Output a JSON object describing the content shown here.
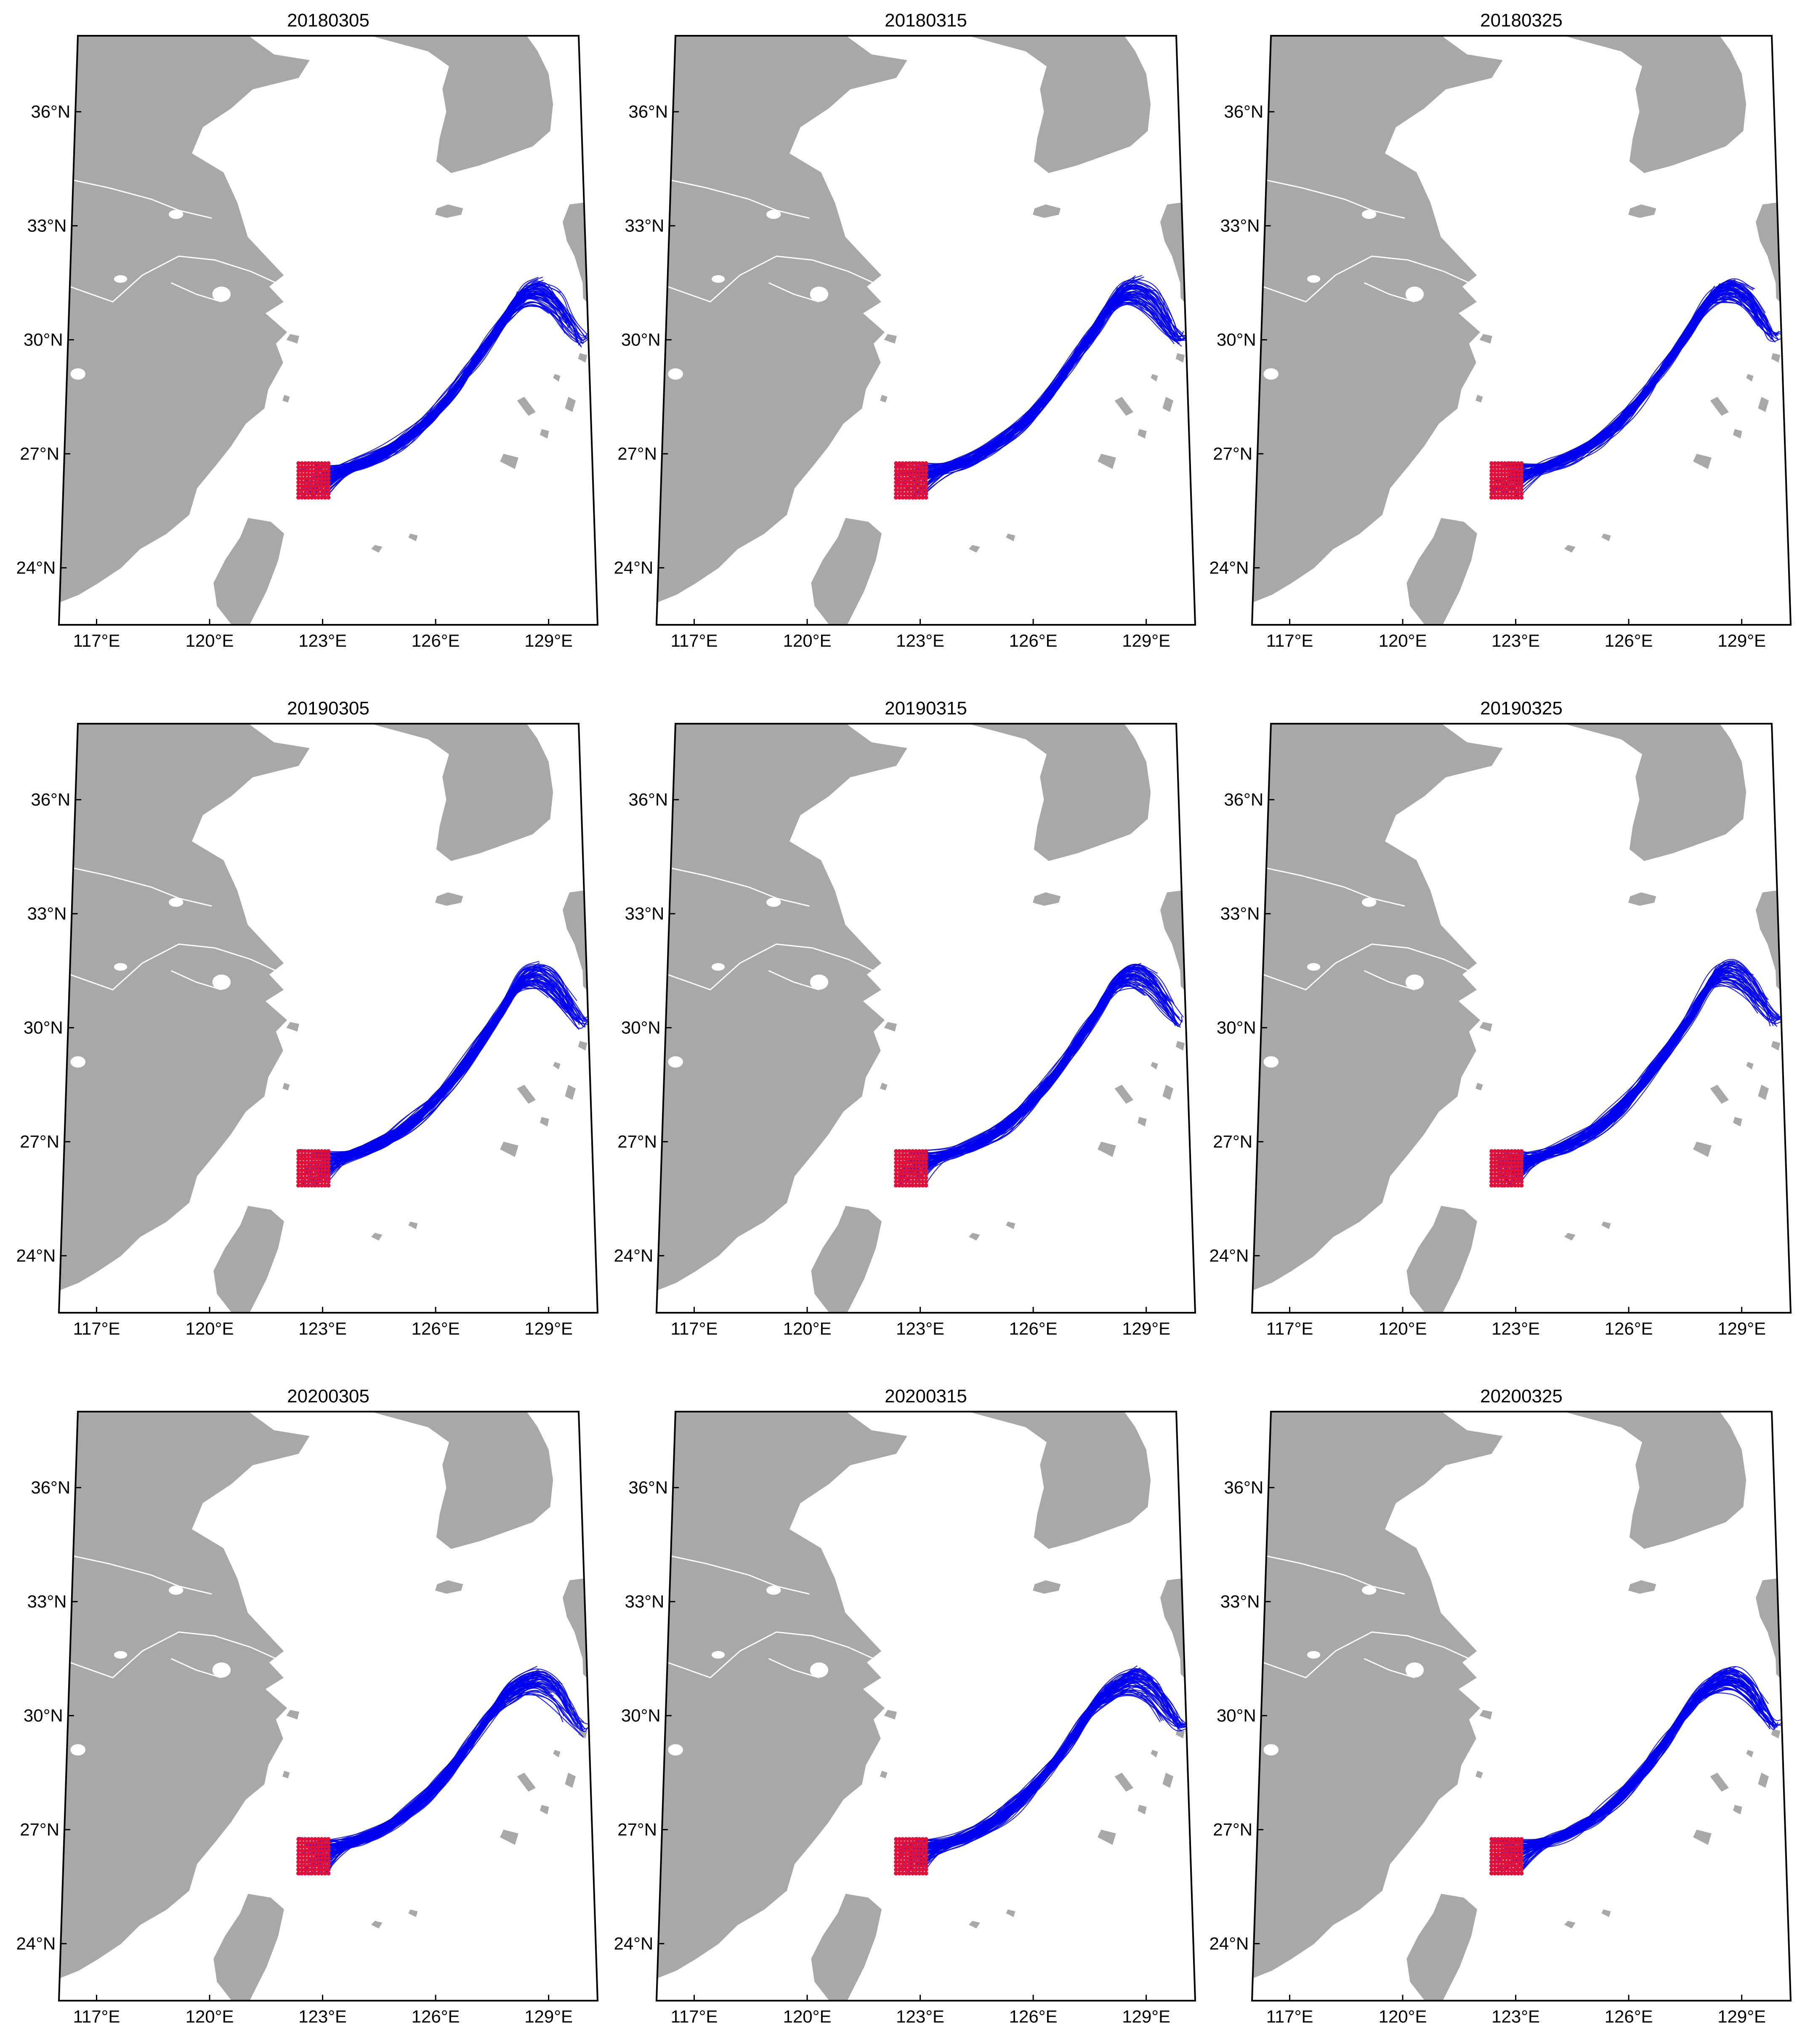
{
  "figure": {
    "panels": [
      {
        "title": "20180305",
        "variant": 0
      },
      {
        "title": "20180315",
        "variant": 1
      },
      {
        "title": "20180325",
        "variant": 2
      },
      {
        "title": "20190305",
        "variant": 3
      },
      {
        "title": "20190315",
        "variant": 4
      },
      {
        "title": "20190325",
        "variant": 5
      },
      {
        "title": "20200305",
        "variant": 6
      },
      {
        "title": "20200315",
        "variant": 7
      },
      {
        "title": "20200325",
        "variant": 8
      }
    ],
    "lon_ticks": [
      {
        "value": 117,
        "label": "117°E"
      },
      {
        "value": 120,
        "label": "120°E"
      },
      {
        "value": 123,
        "label": "123°E"
      },
      {
        "value": 126,
        "label": "126°E"
      },
      {
        "value": 129,
        "label": "129°E"
      }
    ],
    "lat_ticks": [
      {
        "value": 24,
        "label": "24°N"
      },
      {
        "value": 27,
        "label": "27°N"
      },
      {
        "value": 30,
        "label": "30°N"
      },
      {
        "value": 33,
        "label": "33°N"
      },
      {
        "value": 36,
        "label": "36°N"
      }
    ],
    "map_extent": {
      "lon": [
        116,
        130.3
      ],
      "lat": [
        22.5,
        38
      ]
    },
    "release_box": {
      "lon": [
        122.3,
        123.2
      ],
      "lat": [
        25.8,
        26.8
      ]
    },
    "colors": {
      "land": "#a8a8a8",
      "sea": "#ffffff",
      "trajectory": "#0000ee",
      "release_points": "#e0103a",
      "frame": "#000000",
      "river": "#ffffff"
    }
  }
}
